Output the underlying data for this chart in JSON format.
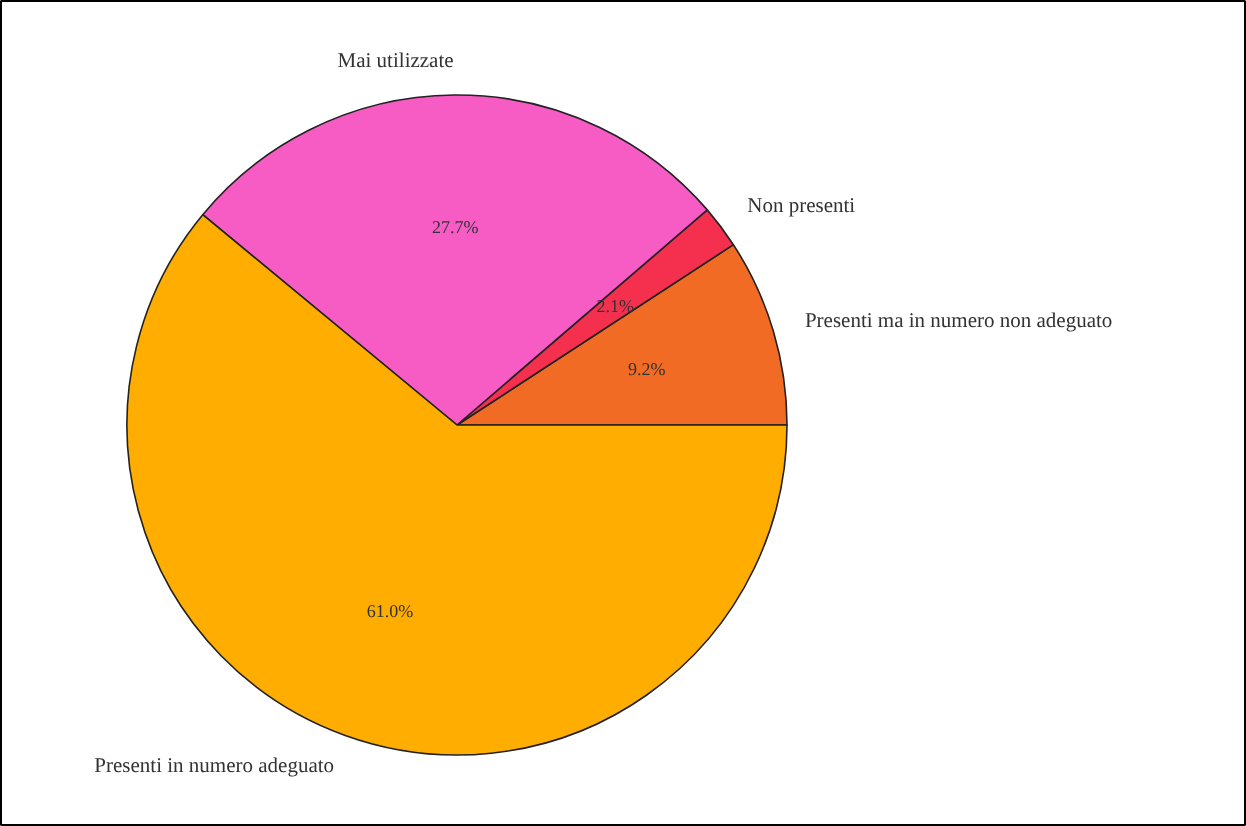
{
  "chart_data": {
    "type": "pie",
    "categories": [
      "Presenti ma in numero non adeguato",
      "Non presenti",
      "Mai utilizzate",
      "Presenti in numero adeguato"
    ],
    "values": [
      9.2,
      2.1,
      27.7,
      61.0
    ],
    "colors": [
      "#f26b24",
      "#f5304f",
      "#f75bc4",
      "#ffad00"
    ],
    "value_labels": [
      "9.2%",
      "2.1%",
      "27.7%",
      "61.0%"
    ],
    "legend": false
  }
}
